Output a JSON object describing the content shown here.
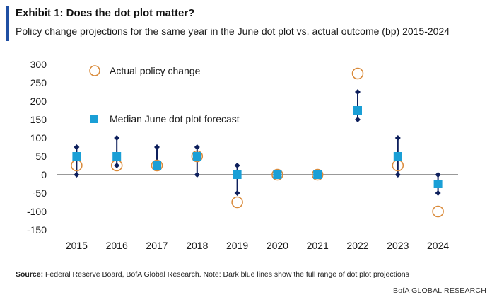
{
  "header": {
    "title": "Exhibit 1: Does the dot plot matter?",
    "subtitle": "Policy change projections for the same year in the June dot plot vs. actual outcome (bp) 2015-2024"
  },
  "footer": {
    "source_label": "Source:",
    "source_text": " Federal Reserve Board, BofA Global Research. Note: Dark blue lines show the full range of dot plot projections",
    "brand": "BofA GLOBAL RESEARCH"
  },
  "colors": {
    "accent": "#1f4fa3",
    "actual": "#d98a3a",
    "median": "#1a9fd6",
    "range": "#0d1f5c"
  },
  "chart_data": {
    "type": "scatter",
    "categories": [
      "2015",
      "2016",
      "2017",
      "2018",
      "2019",
      "2020",
      "2021",
      "2022",
      "2023",
      "2024"
    ],
    "ylim": [
      -150,
      300
    ],
    "yticks": [
      300,
      250,
      200,
      150,
      100,
      50,
      0,
      -50,
      -100,
      -150
    ],
    "legend": {
      "placement": "top-left"
    },
    "series": [
      {
        "name": "Actual policy change",
        "marker": "open-circle",
        "values": [
          25,
          25,
          25,
          50,
          -75,
          0,
          0,
          275,
          25,
          -100
        ]
      },
      {
        "name": "Median June dot plot forecast",
        "marker": "square",
        "values": [
          50,
          50,
          25,
          50,
          0,
          0,
          0,
          175,
          50,
          -25
        ]
      }
    ],
    "range": {
      "low": [
        0,
        25,
        25,
        0,
        -50,
        0,
        0,
        150,
        0,
        -50
      ],
      "high": [
        75,
        100,
        75,
        75,
        25,
        0,
        0,
        225,
        100,
        0
      ]
    },
    "grid": false
  }
}
